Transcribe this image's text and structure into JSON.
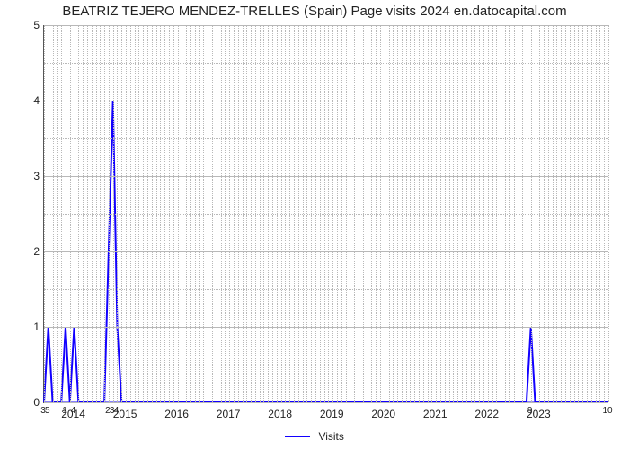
{
  "chart": {
    "type": "line",
    "title": "BEATRIZ TEJERO MENDEZ-TRELLES (Spain) Page visits 2024 en.datocapital.com",
    "title_fontsize": 15,
    "background_color": "#ffffff",
    "series_color": "#1200ff",
    "series_width": 2,
    "grid_color": "#b8b8b8",
    "y": {
      "min": 0,
      "max": 5,
      "ticks": [
        0,
        1,
        2,
        3,
        4,
        5
      ],
      "label_fontsize": 12
    },
    "x": {
      "year_ticks": [
        2014,
        2015,
        2016,
        2017,
        2018,
        2019,
        2020,
        2021,
        2022,
        2023
      ],
      "year_centered_on": 7,
      "categories_per_year": 12,
      "n_points": 132
    },
    "category_labels": [
      {
        "i": 0,
        "text": "3"
      },
      {
        "i": 1,
        "text": "5"
      },
      {
        "i": 5,
        "text": "1"
      },
      {
        "i": 7,
        "text": "4"
      },
      {
        "i": 15,
        "text": "2"
      },
      {
        "i": 16,
        "text": "3"
      },
      {
        "i": 17,
        "text": "4"
      },
      {
        "i": 113,
        "text": "9"
      },
      {
        "i": 131,
        "text": "10"
      }
    ],
    "data": [
      0,
      1,
      0,
      0,
      0,
      1,
      0,
      1,
      0,
      0,
      0,
      0,
      0,
      0,
      0,
      2,
      4,
      1,
      0,
      0,
      0,
      0,
      0,
      0,
      0,
      0,
      0,
      0,
      0,
      0,
      0,
      0,
      0,
      0,
      0,
      0,
      0,
      0,
      0,
      0,
      0,
      0,
      0,
      0,
      0,
      0,
      0,
      0,
      0,
      0,
      0,
      0,
      0,
      0,
      0,
      0,
      0,
      0,
      0,
      0,
      0,
      0,
      0,
      0,
      0,
      0,
      0,
      0,
      0,
      0,
      0,
      0,
      0,
      0,
      0,
      0,
      0,
      0,
      0,
      0,
      0,
      0,
      0,
      0,
      0,
      0,
      0,
      0,
      0,
      0,
      0,
      0,
      0,
      0,
      0,
      0,
      0,
      0,
      0,
      0,
      0,
      0,
      0,
      0,
      0,
      0,
      0,
      0,
      0,
      0,
      0,
      0,
      0,
      1,
      0,
      0,
      0,
      0,
      0,
      0,
      0,
      0,
      0,
      0,
      0,
      0,
      0,
      0,
      0,
      0,
      0,
      0
    ],
    "legend": {
      "label": "Visits"
    }
  }
}
